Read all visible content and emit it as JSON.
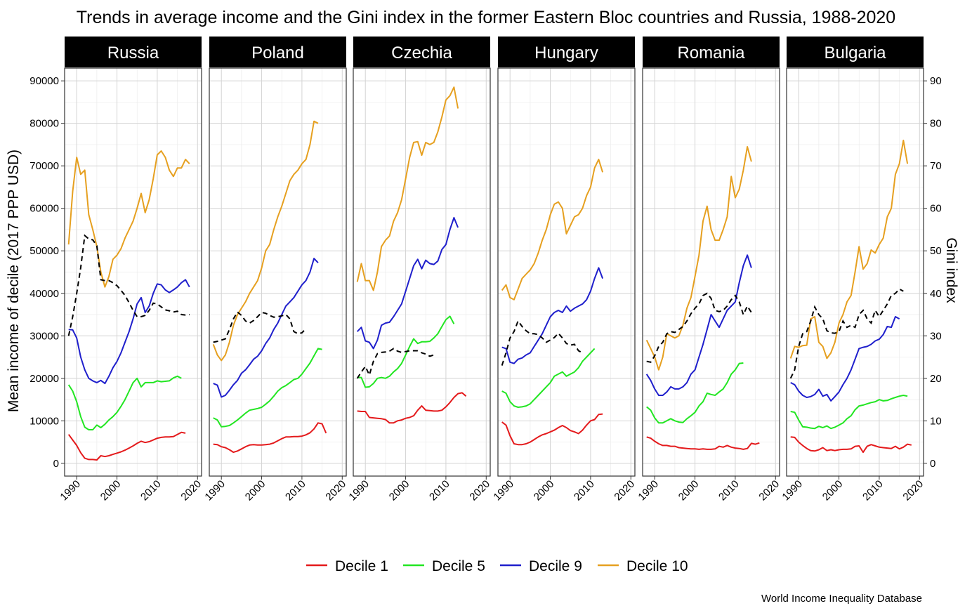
{
  "chart_data": {
    "type": "line",
    "title": "Trends in average income and the Gini index in the former Eastern Bloc countries and Russia, 1988-2020",
    "ylabel": "Mean income of decile (2017 PPP USD)",
    "y2label": "Gini index",
    "caption": "World Income Inequality Database",
    "xlim": [
      1987,
      2021
    ],
    "ylim": [
      -3000,
      93000
    ],
    "y2lim": [
      -3,
      93
    ],
    "x_ticks": [
      1990,
      2000,
      2010,
      2020
    ],
    "y_ticks": [
      0,
      10000,
      20000,
      30000,
      40000,
      50000,
      60000,
      70000,
      80000,
      90000
    ],
    "y2_ticks": [
      0,
      10,
      20,
      30,
      40,
      50,
      60,
      70,
      80,
      90
    ],
    "grid": true,
    "legend_position": "bottom",
    "legend": [
      {
        "label": "Decile 1",
        "color": "#e41a1c"
      },
      {
        "label": "Decile 5",
        "color": "#22e622"
      },
      {
        "label": "Decile 9",
        "color": "#1f1fcc"
      },
      {
        "label": "Decile 10",
        "color": "#e6a020"
      }
    ],
    "gini_style": {
      "color": "#000000",
      "dashed": true
    },
    "years": [
      1988,
      1989,
      1990,
      1991,
      1992,
      1993,
      1994,
      1995,
      1996,
      1997,
      1998,
      1999,
      2000,
      2001,
      2002,
      2003,
      2004,
      2005,
      2006,
      2007,
      2008,
      2009,
      2010,
      2011,
      2012,
      2013,
      2014,
      2015,
      2016,
      2017,
      2018,
      2019,
      2020
    ],
    "panels": [
      {
        "name": "Russia",
        "d1": [
          6800,
          5500,
          4200,
          2500,
          1200,
          900,
          900,
          800,
          1800,
          1600,
          1800,
          2100,
          2400,
          2700,
          3100,
          3600,
          4100,
          4700,
          5200,
          4900,
          5100,
          5500,
          5900,
          6100,
          6200,
          6200,
          6300,
          6800,
          7300,
          7100,
          null,
          null,
          null
        ],
        "d5": [
          18500,
          17000,
          14500,
          11000,
          8500,
          7900,
          7900,
          9000,
          8400,
          9200,
          10200,
          11000,
          12000,
          13400,
          15000,
          17000,
          19000,
          20000,
          18000,
          19000,
          19000,
          19000,
          19400,
          19200,
          19300,
          19400,
          20100,
          20500,
          20000,
          null,
          null,
          null,
          null
        ],
        "d9": [
          31500,
          31400,
          29500,
          25000,
          22000,
          20000,
          19400,
          19000,
          19500,
          18800,
          20500,
          22500,
          24000,
          26000,
          28500,
          31000,
          34000,
          37500,
          39000,
          35500,
          37000,
          40000,
          42200,
          42000,
          40800,
          40200,
          40800,
          41500,
          42500,
          43200,
          41500,
          null,
          null
        ],
        "d10": [
          51500,
          64000,
          72000,
          68000,
          69000,
          58500,
          55000,
          51000,
          45000,
          41500,
          44000,
          48000,
          49000,
          50500,
          53000,
          55000,
          57000,
          60000,
          63500,
          59000,
          62000,
          67000,
          72600,
          73500,
          72000,
          69000,
          67500,
          69500,
          69500,
          71500,
          70500,
          null,
          null
        ],
        "gini": [
          30000,
          34500,
          40000,
          46000,
          53600,
          52800,
          52600,
          51200,
          43200,
          43000,
          43000,
          42500,
          41800,
          40700,
          39500,
          37800,
          36000,
          34500,
          34500,
          34800,
          36000,
          37700,
          37500,
          36800,
          36100,
          35900,
          35600,
          35800,
          35000,
          34900,
          35000,
          null,
          null
        ]
      },
      {
        "name": "Poland",
        "d1": [
          4500,
          4400,
          3900,
          3700,
          3200,
          2600,
          2900,
          3400,
          3900,
          4300,
          4400,
          4300,
          4300,
          4400,
          4500,
          4800,
          5300,
          5800,
          6200,
          6200,
          6300,
          6300,
          6400,
          6700,
          7200,
          8100,
          9500,
          9300,
          7100,
          null,
          null,
          null,
          null
        ],
        "d5": [
          10700,
          10200,
          8600,
          8700,
          8900,
          9500,
          10200,
          11000,
          11800,
          12500,
          12700,
          12900,
          13200,
          13900,
          14700,
          15800,
          17000,
          17800,
          18300,
          19000,
          19700,
          20000,
          21000,
          22300,
          23600,
          25300,
          27000,
          26800,
          null,
          null,
          null,
          null,
          null
        ],
        "d9": [
          18800,
          18400,
          15600,
          16000,
          17200,
          18500,
          19500,
          21200,
          22000,
          23200,
          24500,
          25200,
          26500,
          28200,
          29500,
          31500,
          33000,
          35000,
          37000,
          38000,
          39000,
          40500,
          42000,
          43000,
          45000,
          48200,
          47200,
          null,
          null,
          null,
          null,
          null,
          null
        ],
        "d10": [
          28000,
          25500,
          24200,
          25500,
          28500,
          32500,
          35000,
          36500,
          38000,
          40000,
          41500,
          43000,
          46000,
          50000,
          51500,
          55000,
          58000,
          60500,
          63500,
          66500,
          68000,
          69000,
          70500,
          71500,
          75000,
          80500,
          80000,
          null,
          null,
          null,
          null,
          null,
          null
        ],
        "gini": [
          28500,
          28700,
          29000,
          29300,
          31500,
          34000,
          35600,
          34800,
          33500,
          33000,
          33600,
          34500,
          35500,
          35300,
          34800,
          34400,
          34500,
          34700,
          35000,
          34000,
          31000,
          30500,
          30700,
          31700,
          null,
          null,
          null,
          null,
          null,
          null,
          null,
          null,
          null
        ]
      },
      {
        "name": "Czechia",
        "d1": [
          12300,
          12200,
          12200,
          10800,
          10700,
          10600,
          10500,
          10300,
          9500,
          9500,
          10000,
          10200,
          10600,
          10800,
          11200,
          12500,
          13500,
          12500,
          12400,
          12300,
          12300,
          12500,
          13300,
          14300,
          15500,
          16400,
          16600,
          15800,
          null,
          null,
          null,
          null,
          null
        ],
        "d5": [
          20200,
          20200,
          17900,
          18000,
          18800,
          20000,
          20200,
          20000,
          20500,
          21500,
          22300,
          23500,
          25500,
          27500,
          29300,
          28200,
          28600,
          28600,
          28700,
          29500,
          30500,
          32200,
          33800,
          34600,
          32800,
          null,
          null,
          null,
          null,
          null,
          null,
          null,
          null
        ],
        "d9": [
          31000,
          32000,
          28800,
          28500,
          27000,
          29000,
          32500,
          33000,
          33200,
          34500,
          36000,
          37500,
          40500,
          43500,
          46500,
          48000,
          45800,
          47800,
          47000,
          46800,
          47600,
          50300,
          51500,
          55000,
          57800,
          55500,
          null,
          null,
          null,
          null,
          null,
          null,
          null
        ],
        "d10": [
          42700,
          47000,
          43000,
          43000,
          40700,
          45000,
          51000,
          52500,
          53500,
          57000,
          59000,
          62000,
          67000,
          72000,
          75500,
          75700,
          72500,
          75500,
          75000,
          75500,
          78000,
          81500,
          85500,
          86500,
          88500,
          83500,
          null,
          null,
          null,
          null,
          null,
          null,
          null
        ],
        "gini": [
          20000,
          21500,
          22800,
          20800,
          24000,
          25800,
          26100,
          26200,
          26400,
          27000,
          26400,
          26100,
          26300,
          26500,
          26500,
          26500,
          26000,
          25700,
          25200,
          25500,
          null,
          null,
          null,
          null,
          null,
          null,
          null,
          null,
          null,
          null,
          null,
          null,
          null
        ]
      },
      {
        "name": "Hungary",
        "d1": [
          9700,
          9000,
          6500,
          4600,
          4400,
          4400,
          4600,
          5000,
          5600,
          6200,
          6700,
          7000,
          7400,
          7800,
          8400,
          8900,
          8400,
          7700,
          7400,
          7000,
          7800,
          9000,
          10000,
          10300,
          11500,
          11600,
          null,
          null,
          null,
          null,
          null,
          null,
          null
        ],
        "d5": [
          17000,
          16500,
          14500,
          13500,
          13200,
          13300,
          13500,
          14000,
          15000,
          16000,
          17000,
          18000,
          19000,
          20500,
          21000,
          21500,
          20500,
          21000,
          21500,
          22500,
          24000,
          25000,
          26000,
          27000,
          null,
          null,
          null,
          null,
          null,
          null,
          null,
          null,
          null
        ],
        "d9": [
          27300,
          27000,
          23800,
          23500,
          24500,
          24800,
          25500,
          26000,
          27500,
          29000,
          30500,
          32500,
          34500,
          35500,
          36000,
          35500,
          37000,
          35800,
          36500,
          37000,
          37500,
          38500,
          40500,
          43500,
          46000,
          43500,
          null,
          null,
          null,
          null,
          null,
          null,
          null
        ],
        "d10": [
          40700,
          42000,
          39000,
          38500,
          41000,
          43500,
          44500,
          45500,
          47000,
          49500,
          52500,
          55000,
          58500,
          61000,
          61500,
          60000,
          54000,
          56000,
          58000,
          58500,
          60000,
          63000,
          65000,
          69500,
          71500,
          68500,
          null,
          null,
          null,
          null,
          null,
          null,
          null
        ],
        "gini": [
          23000,
          26000,
          29500,
          31000,
          33500,
          32200,
          31200,
          30500,
          30500,
          30300,
          29500,
          28500,
          29000,
          29600,
          30600,
          29500,
          28200,
          27800,
          28000,
          26500,
          26000,
          null,
          null,
          null,
          null,
          null,
          null,
          null,
          null,
          null,
          null,
          null,
          null
        ]
      },
      {
        "name": "Romania",
        "d1": [
          6200,
          5900,
          5200,
          4600,
          4200,
          4200,
          4000,
          4000,
          3700,
          3600,
          3500,
          3400,
          3400,
          3300,
          3400,
          3300,
          3300,
          3400,
          4000,
          3800,
          4200,
          3800,
          3600,
          3500,
          3300,
          3500,
          4700,
          4500,
          4800,
          null,
          null,
          null,
          null
        ],
        "d5": [
          13300,
          12500,
          10700,
          9500,
          9500,
          10000,
          10500,
          10000,
          9700,
          9600,
          10500,
          11200,
          12000,
          13500,
          14500,
          16500,
          16200,
          16000,
          16800,
          17500,
          19000,
          21000,
          22000,
          23500,
          23600,
          null,
          null,
          null,
          null,
          null,
          null,
          null,
          null
        ],
        "d9": [
          21000,
          19500,
          17500,
          16000,
          16000,
          16800,
          18000,
          17500,
          17500,
          18000,
          19000,
          21000,
          22000,
          25000,
          28000,
          31500,
          35000,
          33500,
          32000,
          34000,
          36000,
          37000,
          38000,
          42500,
          46500,
          49000,
          46000,
          null,
          null,
          null,
          null,
          null,
          null
        ],
        "d10": [
          29000,
          27000,
          25000,
          22000,
          25000,
          30500,
          30000,
          29500,
          30000,
          32500,
          36500,
          39000,
          44000,
          49000,
          57000,
          60500,
          55000,
          52500,
          52500,
          55000,
          58000,
          67500,
          62500,
          64500,
          69000,
          74500,
          71000,
          null,
          null,
          null,
          null,
          null,
          null
        ],
        "gini": [
          24000,
          23800,
          25300,
          27500,
          28500,
          30500,
          31000,
          30800,
          31500,
          32200,
          33500,
          35200,
          36500,
          37500,
          39500,
          40000,
          38800,
          36000,
          35700,
          36000,
          37000,
          38500,
          39500,
          38000,
          35000,
          37000,
          35500,
          null,
          null,
          null,
          null,
          null,
          null
        ]
      },
      {
        "name": "Bulgaria",
        "d1": [
          6200,
          6100,
          5000,
          4200,
          3500,
          3000,
          2900,
          3200,
          3700,
          3000,
          3200,
          3000,
          3200,
          3300,
          3300,
          3400,
          4000,
          4100,
          2600,
          4000,
          4400,
          4100,
          3800,
          3700,
          3600,
          3500,
          4000,
          3400,
          3800,
          4500,
          4300,
          null,
          null
        ],
        "d5": [
          12200,
          12000,
          10200,
          8600,
          8500,
          8300,
          8200,
          8700,
          8400,
          8800,
          8200,
          8500,
          9000,
          9500,
          10500,
          11200,
          12600,
          13500,
          13700,
          14000,
          14300,
          14500,
          15000,
          14700,
          14800,
          15200,
          15500,
          15800,
          16000,
          15800,
          null,
          null,
          null
        ],
        "d9": [
          19000,
          18500,
          17000,
          16000,
          15500,
          15700,
          16200,
          17400,
          15800,
          16200,
          14700,
          15700,
          16800,
          18500,
          20000,
          22000,
          24500,
          27000,
          27300,
          27500,
          28000,
          28800,
          29200,
          30300,
          32200,
          32000,
          34500,
          34000,
          null,
          null,
          null,
          null,
          null
        ],
        "d10": [
          24700,
          27500,
          27300,
          27700,
          27800,
          34000,
          34500,
          28500,
          27500,
          24700,
          26000,
          28500,
          33000,
          35000,
          38000,
          39500,
          45000,
          51000,
          45700,
          47000,
          50200,
          49500,
          51500,
          53000,
          58000,
          60000,
          68000,
          70500,
          76000,
          70500,
          null,
          null,
          null
        ],
        "gini": [
          20000,
          22000,
          27500,
          30500,
          31000,
          33500,
          36800,
          35000,
          34000,
          31200,
          30700,
          30600,
          31000,
          33500,
          32000,
          32500,
          32000,
          35000,
          36000,
          34000,
          33000,
          36000,
          34500,
          36000,
          37500,
          39500,
          40000,
          41000,
          40500,
          null,
          null,
          null,
          null
        ]
      }
    ]
  }
}
